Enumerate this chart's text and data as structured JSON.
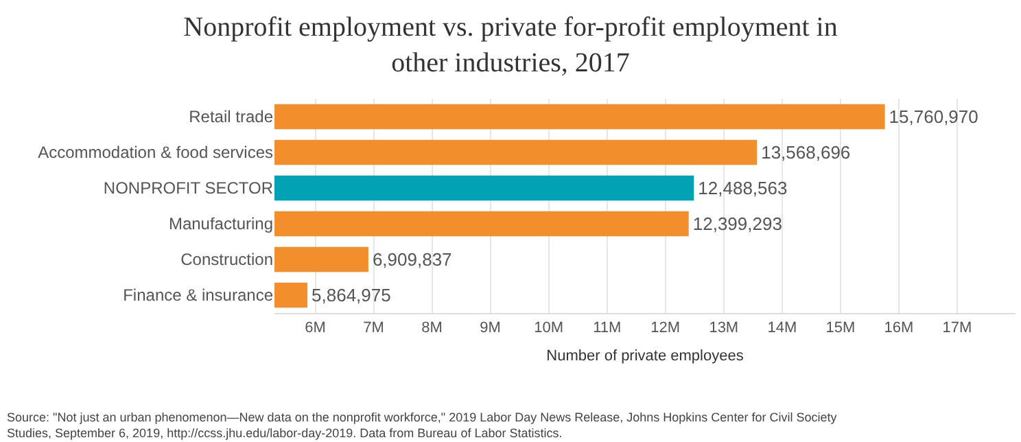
{
  "chart_data": {
    "type": "bar",
    "orientation": "horizontal",
    "title": "Nonprofit employment vs. private for-profit employment in other industries, 2017",
    "categories": [
      "Retail trade",
      "Accommodation & food services",
      "NONPROFIT SECTOR",
      "Manufacturing",
      "Construction",
      "Finance & insurance"
    ],
    "values": [
      15760970,
      13568696,
      12488563,
      12399293,
      6909837,
      5864975
    ],
    "colors": [
      "#f28e2b",
      "#f28e2b",
      "#00a2b3",
      "#f28e2b",
      "#f28e2b",
      "#f28e2b"
    ],
    "xlabel": "Number of private employees",
    "xlim": [
      5300000,
      18000000
    ],
    "xticks": [
      {
        "value": 6000000,
        "label": "6M"
      },
      {
        "value": 7000000,
        "label": "7M"
      },
      {
        "value": 8000000,
        "label": "8M"
      },
      {
        "value": 9000000,
        "label": "9M"
      },
      {
        "value": 10000000,
        "label": "10M"
      },
      {
        "value": 11000000,
        "label": "11M"
      },
      {
        "value": 12000000,
        "label": "12M"
      },
      {
        "value": 13000000,
        "label": "13M"
      },
      {
        "value": 14000000,
        "label": "14M"
      },
      {
        "value": 15000000,
        "label": "15M"
      },
      {
        "value": 16000000,
        "label": "16M"
      },
      {
        "value": 17000000,
        "label": "17M"
      }
    ],
    "grid": "x",
    "value_labels": [
      "15,760,970",
      "13,568,696",
      "12,488,563",
      "12,399,293",
      "6,909,837",
      "5,864,975"
    ],
    "annotations": [
      "Source: \"Not just an urban phenomenon—New data on the nonprofit workforce,\" 2019 Labor Day News Release, Johns Hopkins Center for Civil Society Studies, September 6, 2019, http://ccss.jhu.edu/labor-day-2019. Data from Bureau of Labor Statistics."
    ]
  }
}
